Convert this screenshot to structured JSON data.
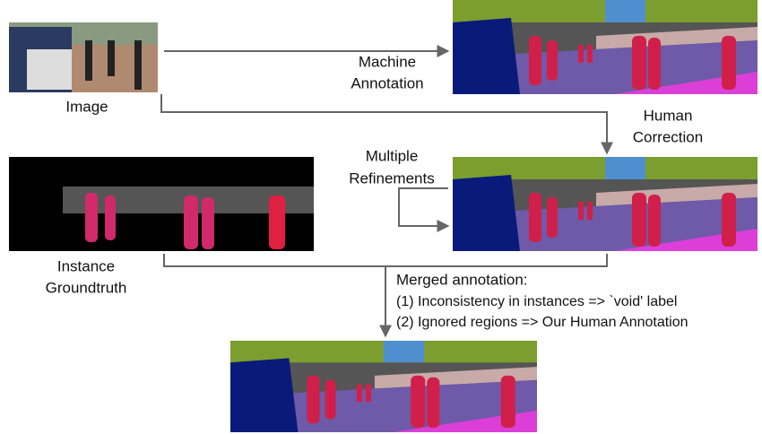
{
  "labels": {
    "image": "Image",
    "machine_annotation": [
      "Machine",
      "Annotation"
    ],
    "human_correction": [
      "Human",
      "Correction"
    ],
    "multiple_refinements": [
      "Multiple",
      "Refinements"
    ],
    "instance_groundtruth": [
      "Instance",
      "Groundtruth"
    ],
    "merged": [
      "Merged annotation:",
      "(1) Inconsistency in instances => `void' label",
      "(2) Ignored regions => Our Human Annotation"
    ]
  }
}
